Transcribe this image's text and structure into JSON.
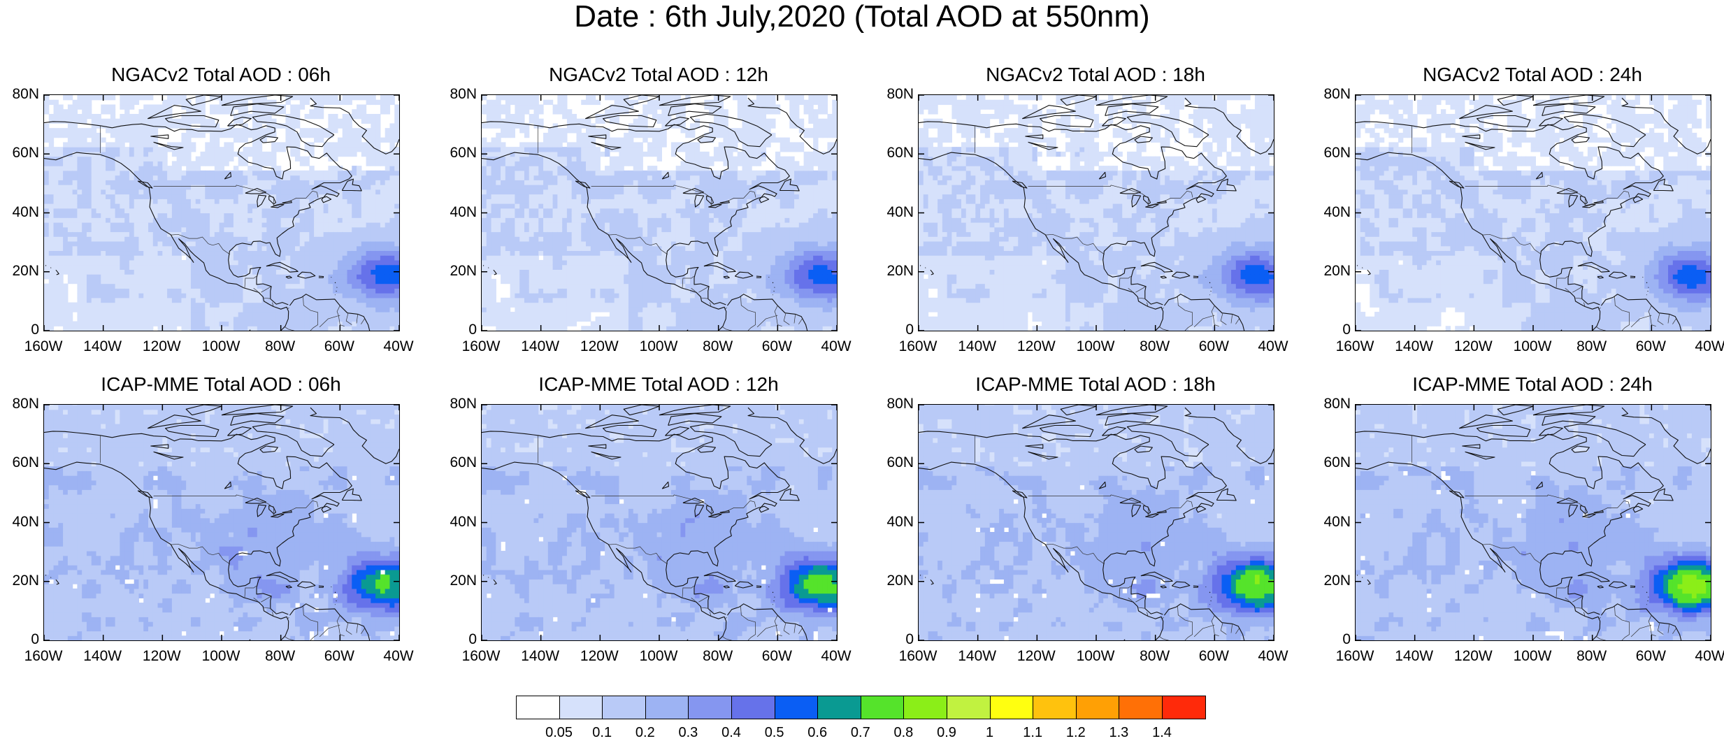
{
  "title": "Date : 6th July,2020 (Total AOD at 550nm)",
  "panels": [
    {
      "model": "NGACv2",
      "label": "NGACv2 Total AOD : 06h",
      "hour": "06h"
    },
    {
      "model": "NGACv2",
      "label": "NGACv2 Total AOD : 12h",
      "hour": "12h"
    },
    {
      "model": "NGACv2",
      "label": "NGACv2 Total AOD : 18h",
      "hour": "18h"
    },
    {
      "model": "NGACv2",
      "label": "NGACv2 Total AOD : 24h",
      "hour": "24h"
    },
    {
      "model": "ICAP-MME",
      "label": "ICAP-MME Total AOD : 06h",
      "hour": "06h"
    },
    {
      "model": "ICAP-MME",
      "label": "ICAP-MME Total AOD : 12h",
      "hour": "12h"
    },
    {
      "model": "ICAP-MME",
      "label": "ICAP-MME Total AOD : 18h",
      "hour": "18h"
    },
    {
      "model": "ICAP-MME",
      "label": "ICAP-MME Total AOD : 24h",
      "hour": "24h"
    }
  ],
  "axes": {
    "lat_ticks": [
      "80N",
      "60N",
      "40N",
      "20N",
      "0"
    ],
    "lon_ticks": [
      "160W",
      "140W",
      "120W",
      "100W",
      "80W",
      "60W",
      "40W"
    ],
    "lat_range": [
      0,
      80
    ],
    "lon_range": [
      -160,
      -40
    ]
  },
  "colorbar": {
    "labels": [
      "0.05",
      "0.1",
      "0.2",
      "0.3",
      "0.4",
      "0.5",
      "0.6",
      "0.7",
      "0.8",
      "0.9",
      "1",
      "1.1",
      "1.2",
      "1.3",
      "1.4"
    ],
    "colors": [
      "#ffffff",
      "#d6e1fb",
      "#b9caf7",
      "#9db3f3",
      "#8596f0",
      "#6672ea",
      "#0a5ef4",
      "#0a9a92",
      "#55e32b",
      "#8bee18",
      "#c1f240",
      "#ffff10",
      "#ffc20d",
      "#ffa005",
      "#ff7006",
      "#ff2a0a"
    ]
  },
  "icons": {
    "map": "coastline-map-icon"
  }
}
